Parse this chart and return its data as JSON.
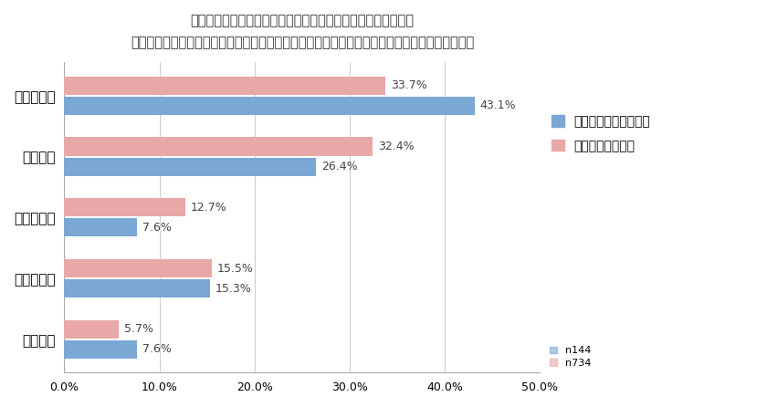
{
  "title_line1": "近年は「働き方改革」というキーワードが注目されていますが",
  "title_line2": "「朝に前倒しで働いて、早く帰宅したり、仕事の効率化を図りたい」という想いはありますか。",
  "categories": [
    "とてもある",
    "少しある",
    "わからない",
    "あまりない",
    "全くない"
  ],
  "series1_label": "東京在住・有職者女性",
  "series2_label": "全国・有職者女性",
  "series1_values": [
    43.1,
    26.4,
    7.6,
    15.3,
    7.6
  ],
  "series2_values": [
    33.7,
    32.4,
    12.7,
    15.5,
    5.7
  ],
  "series1_color": "#7ba7d4",
  "series2_color": "#e8a8a8",
  "series1_n": "n144",
  "series2_n": "n734",
  "xlim": [
    0,
    50
  ],
  "xticks": [
    0,
    10,
    20,
    30,
    40,
    50
  ],
  "bar_height": 0.3,
  "title_fontsize": 10.5,
  "background_color": "#ffffff",
  "value_label_fontsize": 9,
  "category_fontsize": 11,
  "legend_fontsize": 10,
  "n_legend_fontsize": 8
}
